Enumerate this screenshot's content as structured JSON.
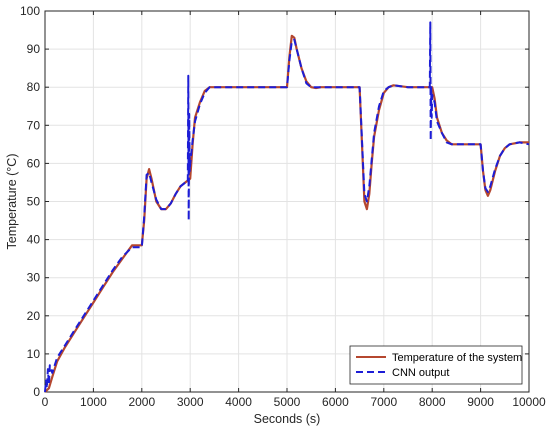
{
  "chart_data": {
    "type": "line",
    "xlabel": "Seconds (s)",
    "ylabel": "Temperature (°C)",
    "xlim": [
      0,
      10000
    ],
    "ylim": [
      0,
      100
    ],
    "xticks": [
      0,
      1000,
      2000,
      3000,
      4000,
      5000,
      6000,
      7000,
      8000,
      9000,
      10000
    ],
    "yticks": [
      0,
      10,
      20,
      30,
      40,
      50,
      60,
      70,
      80,
      90,
      100
    ],
    "grid": true,
    "legend": "bottom-right",
    "series": [
      {
        "name": "Temperature of the system",
        "color": "#b5472f",
        "style": "solid",
        "x": [
          0,
          80,
          150,
          250,
          400,
          600,
          800,
          1000,
          1200,
          1400,
          1600,
          1800,
          2000,
          2050,
          2100,
          2150,
          2200,
          2300,
          2400,
          2500,
          2600,
          2700,
          2800,
          2900,
          3000,
          3050,
          3100,
          3200,
          3300,
          3400,
          3600,
          4000,
          4500,
          5000,
          5050,
          5100,
          5150,
          5200,
          5300,
          5400,
          5500,
          5600,
          5700,
          6000,
          6500,
          6550,
          6600,
          6650,
          6700,
          6750,
          6800,
          6900,
          7000,
          7100,
          7200,
          7500,
          8000,
          8050,
          8100,
          8200,
          8300,
          8400,
          8600,
          9000,
          9050,
          9100,
          9150,
          9200,
          9300,
          9400,
          9500,
          9600,
          9800,
          10000
        ],
        "y": [
          0,
          1,
          4,
          8,
          11.5,
          15.5,
          19.5,
          23.5,
          27.5,
          31.5,
          35,
          38.5,
          38.5,
          45,
          56,
          58.5,
          56,
          50,
          48,
          48,
          49.5,
          52,
          54,
          55,
          56,
          65,
          72,
          76,
          79,
          80,
          80,
          80,
          80,
          80,
          88,
          93.5,
          93,
          90,
          85,
          81.5,
          80,
          79.8,
          80,
          80,
          80,
          65,
          50,
          48,
          52,
          60,
          67,
          74,
          78.5,
          80,
          80.5,
          80,
          80,
          77,
          72,
          68,
          66,
          65,
          65,
          65,
          58,
          53,
          51.5,
          53,
          58,
          62,
          64,
          65,
          65.5,
          65.5
        ]
      },
      {
        "name": "CNN output",
        "color": "#1d1dd6",
        "style": "dashed",
        "x": [
          0,
          20,
          40,
          60,
          80,
          100,
          150,
          250,
          400,
          600,
          800,
          1000,
          1200,
          1400,
          1600,
          1800,
          2000,
          2050,
          2100,
          2150,
          2200,
          2300,
          2400,
          2500,
          2600,
          2700,
          2800,
          2900,
          2950,
          2960,
          2970,
          2980,
          2990,
          3000,
          3050,
          3100,
          3200,
          3300,
          3400,
          3600,
          4000,
          4500,
          5000,
          5050,
          5100,
          5150,
          5200,
          5300,
          5400,
          5500,
          5600,
          5700,
          6000,
          6500,
          6550,
          6600,
          6650,
          6700,
          6750,
          6800,
          6900,
          7000,
          7100,
          7200,
          7500,
          7950,
          7960,
          7970,
          7980,
          7990,
          8000,
          8050,
          8100,
          8200,
          8300,
          8400,
          8600,
          9000,
          9050,
          9100,
          9150,
          9200,
          9300,
          9400,
          9500,
          9600,
          9800,
          10000
        ],
        "y": [
          0,
          3,
          1,
          6,
          2,
          7,
          5,
          9,
          12,
          16,
          20,
          24,
          28,
          32,
          35.5,
          38,
          38,
          46,
          57,
          57.5,
          55,
          50.5,
          48,
          48,
          49.5,
          52,
          54,
          55,
          55,
          83,
          45,
          73,
          58,
          60,
          66,
          71,
          75.5,
          78.5,
          80,
          80,
          80,
          80,
          80,
          87,
          92,
          92.5,
          90,
          85,
          81,
          80,
          80,
          80,
          80,
          80,
          66,
          52,
          50,
          54,
          61,
          68,
          75,
          79,
          80,
          80.5,
          80,
          80,
          97,
          66,
          80,
          72,
          78,
          76,
          71,
          68,
          65.5,
          65,
          65,
          65,
          58,
          53.5,
          52.5,
          54,
          58.5,
          62,
          64,
          65,
          65.5,
          65
        ]
      }
    ]
  }
}
